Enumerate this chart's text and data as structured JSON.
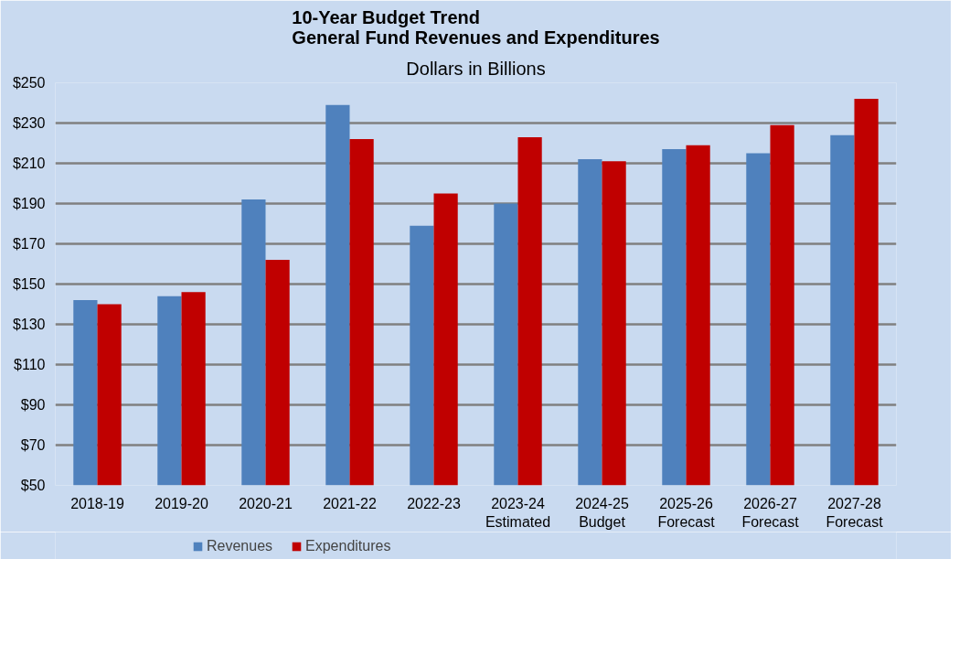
{
  "chart_data": {
    "type": "bar",
    "title": "10-Year Budget Trend\nGeneral Fund Revenues and Expenditures",
    "subtitle": "Dollars in Billions",
    "categories": [
      "2018-19",
      "2019-20",
      "2020-21",
      "2021-22",
      "2022-23",
      "2023-24\nEstimated",
      "2024-25\nBudget",
      "2025-26\nForecast",
      "2026-27\nForecast",
      "2027-28\nForecast"
    ],
    "series": [
      {
        "name": "Revenues",
        "color": "#4f81bd",
        "values": [
          142,
          144,
          192,
          239,
          179,
          190,
          212,
          217,
          215,
          224
        ]
      },
      {
        "name": "Expenditures",
        "color": "#c00000",
        "values": [
          140,
          146,
          162,
          222,
          195,
          223,
          211,
          219,
          229,
          242
        ]
      }
    ],
    "ylim": [
      50,
      250
    ],
    "yticks": [
      {
        "value": 50,
        "label": "$50"
      },
      {
        "value": 70,
        "label": "$70"
      },
      {
        "value": 90,
        "label": "$90"
      },
      {
        "value": 110,
        "label": "$110"
      },
      {
        "value": 130,
        "label": "$130"
      },
      {
        "value": 150,
        "label": "$150"
      },
      {
        "value": 170,
        "label": "$170"
      },
      {
        "value": 190,
        "label": "$190"
      },
      {
        "value": 210,
        "label": "$210"
      },
      {
        "value": 230,
        "label": "$230"
      },
      {
        "value": 250,
        "label": "$250"
      }
    ],
    "grid": "y",
    "legend": "bottom"
  }
}
